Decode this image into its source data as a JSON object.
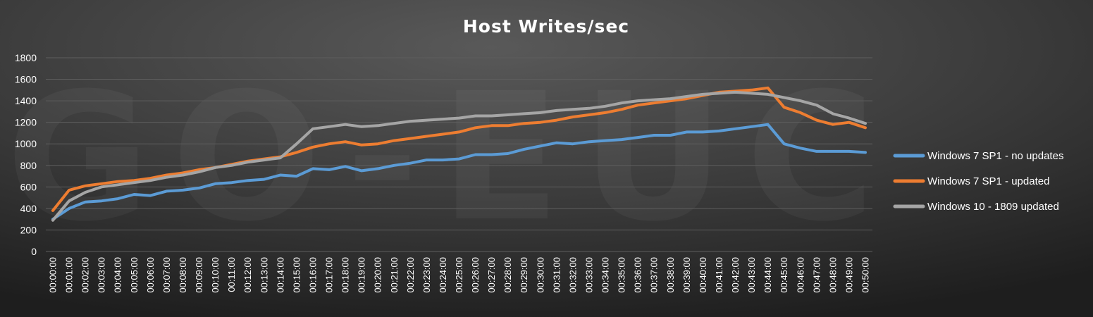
{
  "chart_data": {
    "type": "line",
    "title": "Host Writes/sec",
    "xlabel": "",
    "ylabel": "",
    "ylim": [
      0,
      1800
    ],
    "yticks": [
      0,
      200,
      400,
      600,
      800,
      1000,
      1200,
      1400,
      1600,
      1800
    ],
    "grid": true,
    "legend_position": "right",
    "watermark": "GO-EUC",
    "x": [
      "00:00:00",
      "00:01:00",
      "00:02:00",
      "00:03:00",
      "00:04:00",
      "00:05:00",
      "00:06:00",
      "00:07:00",
      "00:08:00",
      "00:09:00",
      "00:10:00",
      "00:11:00",
      "00:12:00",
      "00:13:00",
      "00:14:00",
      "00:15:00",
      "00:16:00",
      "00:17:00",
      "00:18:00",
      "00:19:00",
      "00:20:00",
      "00:21:00",
      "00:22:00",
      "00:23:00",
      "00:24:00",
      "00:25:00",
      "00:26:00",
      "00:27:00",
      "00:28:00",
      "00:29:00",
      "00:30:00",
      "00:31:00",
      "00:32:00",
      "00:33:00",
      "00:34:00",
      "00:35:00",
      "00:36:00",
      "00:37:00",
      "00:38:00",
      "00:39:00",
      "00:40:00",
      "00:41:00",
      "00:42:00",
      "00:43:00",
      "00:44:00",
      "00:45:00",
      "00:46:00",
      "00:47:00",
      "00:48:00",
      "00:49:00",
      "00:50:00"
    ],
    "series": [
      {
        "name": "Windows 7 SP1 - no updates",
        "color": "#5b9bd5",
        "values": [
          300,
          400,
          460,
          470,
          490,
          530,
          520,
          560,
          570,
          590,
          630,
          640,
          660,
          670,
          710,
          700,
          770,
          760,
          790,
          750,
          770,
          800,
          820,
          850,
          850,
          860,
          900,
          900,
          910,
          950,
          980,
          1010,
          1000,
          1020,
          1030,
          1040,
          1060,
          1080,
          1080,
          1110,
          1110,
          1120,
          1140,
          1160,
          1180,
          1000,
          960,
          930,
          930,
          930,
          920
        ]
      },
      {
        "name": "Windows 7 SP1 - updated",
        "color": "#ed7d31",
        "values": [
          380,
          570,
          610,
          630,
          650,
          660,
          680,
          710,
          730,
          760,
          780,
          810,
          840,
          860,
          880,
          920,
          970,
          1000,
          1020,
          990,
          1000,
          1030,
          1050,
          1070,
          1090,
          1110,
          1150,
          1170,
          1170,
          1190,
          1200,
          1220,
          1250,
          1270,
          1290,
          1320,
          1360,
          1380,
          1400,
          1420,
          1450,
          1480,
          1490,
          1500,
          1520,
          1340,
          1290,
          1220,
          1180,
          1200,
          1150
        ]
      },
      {
        "name": "Windows 10 - 1809 updated",
        "color": "#a5a5a5",
        "values": [
          290,
          470,
          550,
          600,
          620,
          640,
          660,
          690,
          710,
          740,
          780,
          800,
          830,
          850,
          870,
          1000,
          1140,
          1160,
          1180,
          1160,
          1170,
          1190,
          1210,
          1220,
          1230,
          1240,
          1260,
          1260,
          1270,
          1280,
          1290,
          1310,
          1320,
          1330,
          1350,
          1380,
          1400,
          1410,
          1420,
          1440,
          1460,
          1470,
          1480,
          1470,
          1460,
          1430,
          1400,
          1360,
          1280,
          1240,
          1190
        ]
      }
    ]
  }
}
